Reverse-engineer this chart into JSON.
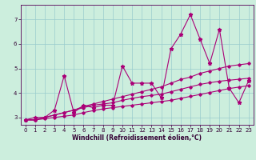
{
  "x": [
    0,
    1,
    2,
    3,
    4,
    5,
    6,
    7,
    8,
    9,
    10,
    11,
    12,
    13,
    14,
    15,
    16,
    17,
    18,
    19,
    20,
    21,
    22,
    23
  ],
  "line1": [
    2.9,
    3.0,
    3.0,
    3.3,
    4.7,
    3.2,
    3.5,
    3.4,
    3.5,
    3.5,
    5.1,
    4.4,
    4.4,
    4.4,
    3.8,
    5.8,
    6.4,
    7.2,
    6.2,
    5.2,
    6.6,
    4.2,
    3.6,
    4.5
  ],
  "line2": [
    2.9,
    2.9,
    3.0,
    3.1,
    3.2,
    3.3,
    3.45,
    3.55,
    3.65,
    3.75,
    3.85,
    3.95,
    4.05,
    4.15,
    4.25,
    4.4,
    4.55,
    4.65,
    4.8,
    4.9,
    5.0,
    5.1,
    5.15,
    5.2
  ],
  "line3": [
    2.9,
    2.9,
    3.0,
    3.1,
    3.2,
    3.3,
    3.4,
    3.5,
    3.55,
    3.6,
    3.7,
    3.78,
    3.85,
    3.9,
    3.95,
    4.05,
    4.15,
    4.25,
    4.35,
    4.42,
    4.48,
    4.52,
    4.56,
    4.6
  ],
  "line4": [
    2.9,
    2.9,
    2.95,
    3.0,
    3.05,
    3.1,
    3.2,
    3.28,
    3.35,
    3.4,
    3.45,
    3.5,
    3.55,
    3.6,
    3.65,
    3.7,
    3.78,
    3.86,
    3.94,
    4.02,
    4.1,
    4.18,
    4.24,
    4.3
  ],
  "color": "#aa0077",
  "bg_color": "#cceedd",
  "grid_color": "#99cccc",
  "xlabel": "Windchill (Refroidissement éolien,°C)",
  "xlim_min": -0.5,
  "xlim_max": 23.5,
  "ylim_min": 2.7,
  "ylim_max": 7.6,
  "yticks": [
    3,
    4,
    5,
    6,
    7
  ],
  "xticks": [
    0,
    1,
    2,
    3,
    4,
    5,
    6,
    7,
    8,
    9,
    10,
    11,
    12,
    13,
    14,
    15,
    16,
    17,
    18,
    19,
    20,
    21,
    22,
    23
  ],
  "tick_fontsize": 5,
  "xlabel_fontsize": 5.5,
  "linewidth": 0.8,
  "marker1": "*",
  "marker_other": "D",
  "markersize1": 3.5,
  "markersize_other": 1.8
}
